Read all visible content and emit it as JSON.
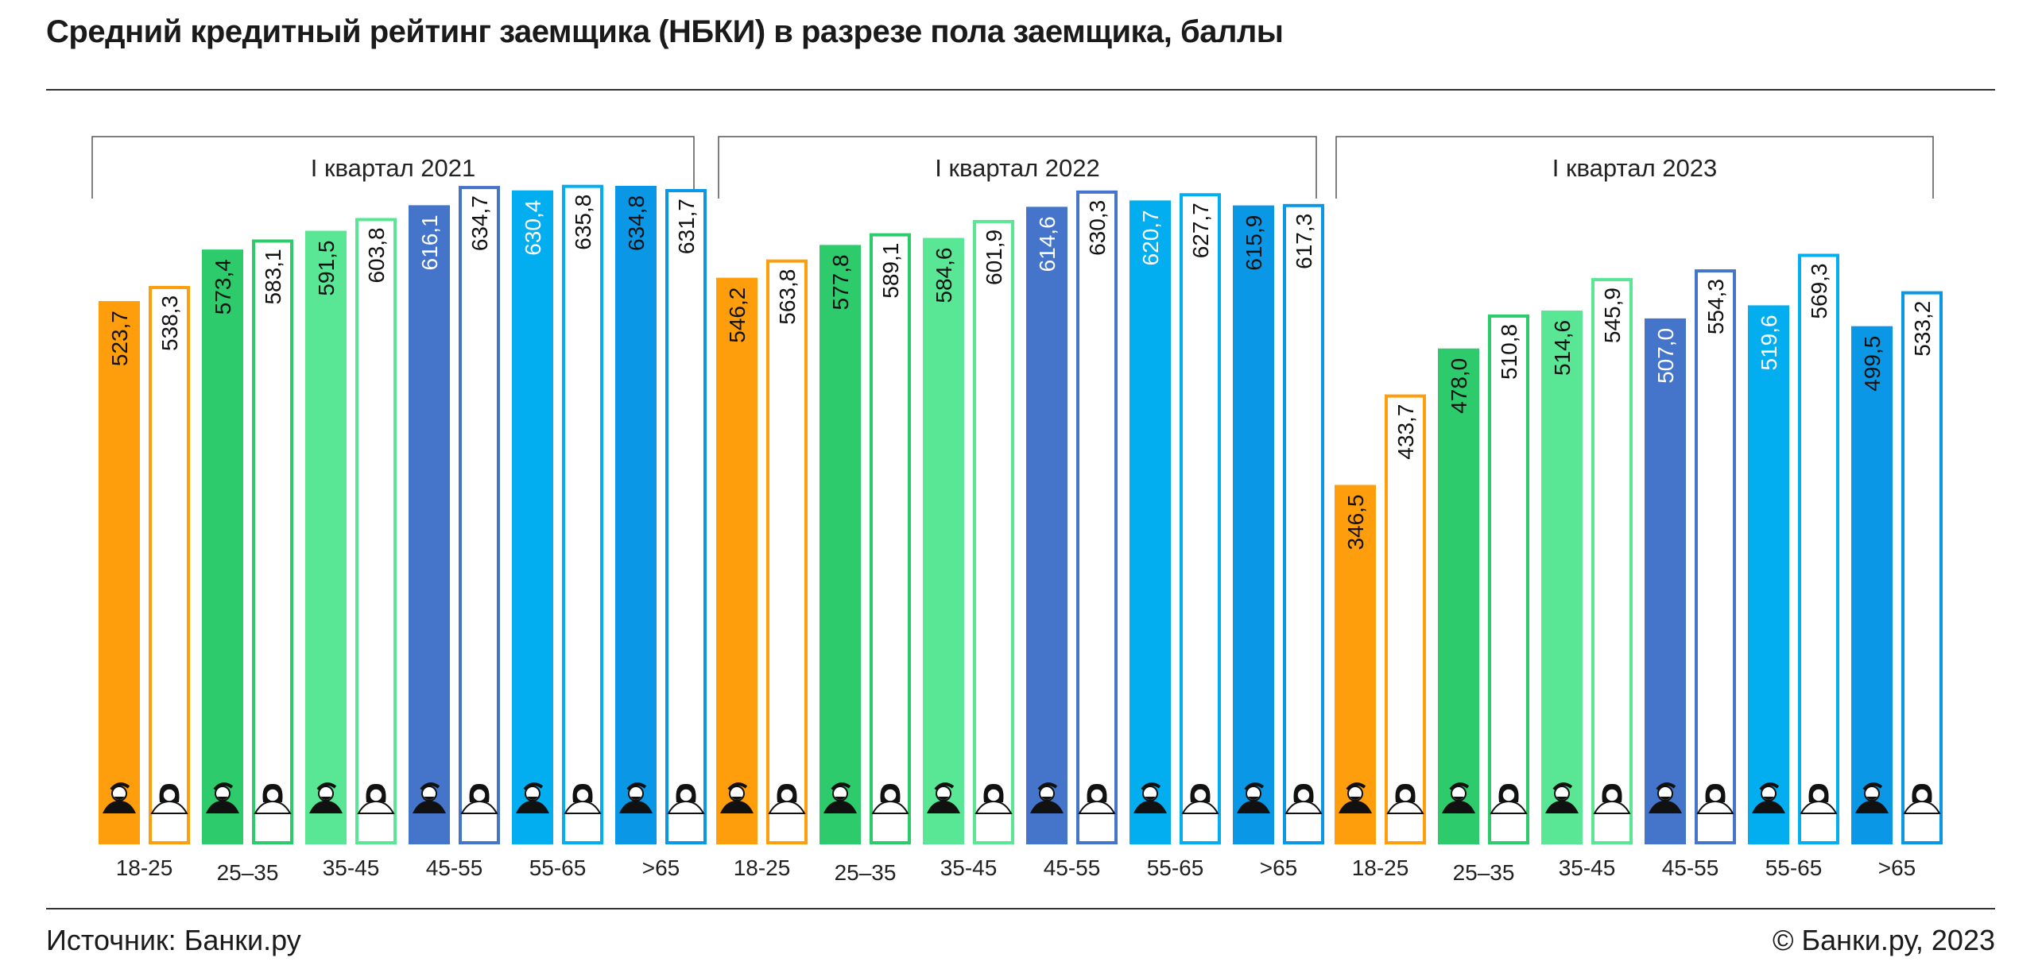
{
  "title": "Средний кредитный рейтинг заемщика (НБКИ) в разрезе пола заемщика, баллы",
  "footer": {
    "source": "Источник: Банки.ру",
    "copyright": "© Банки.ру, 2023"
  },
  "colors": {
    "18-25": "#fe9e0c",
    "25–35": "#2dcb6b",
    "35-45": "#59e796",
    "45-55": "#4574cb",
    "55-65": "#03aef0",
    "> 65": "#0997e6"
  },
  "icons": {
    "male": "man-with-beard-icon",
    "female": "woman-icon"
  },
  "chart_data": {
    "type": "bar",
    "title": "Средний кредитный рейтинг заемщика (НБКИ) в разрезе пола заемщика, баллы",
    "groups": [
      "I квартал 2021",
      "I квартал 2022",
      "I квартал 2023"
    ],
    "categories": [
      "18-25",
      "25–35",
      "35-45",
      "45-55",
      "55-65",
      ">65"
    ],
    "series": [
      {
        "group": "I квартал 2021",
        "male": [
          523.7,
          573.4,
          591.5,
          616.1,
          630.4,
          634.8
        ],
        "female": [
          538.3,
          583.1,
          603.8,
          634.7,
          635.8,
          631.7
        ]
      },
      {
        "group": "I квартал 2022",
        "male": [
          546.2,
          577.8,
          584.6,
          614.6,
          620.7,
          615.9
        ],
        "female": [
          563.8,
          589.1,
          601.9,
          630.3,
          627.7,
          617.3
        ]
      },
      {
        "group": "I квартал 2023",
        "male": [
          346.5,
          478.0,
          514.6,
          507.0,
          519.6,
          499.5
        ],
        "female": [
          433.7,
          510.8,
          545.9,
          554.3,
          569.3,
          533.2
        ]
      }
    ],
    "label_format": "comma-decimal",
    "legend": "none"
  }
}
